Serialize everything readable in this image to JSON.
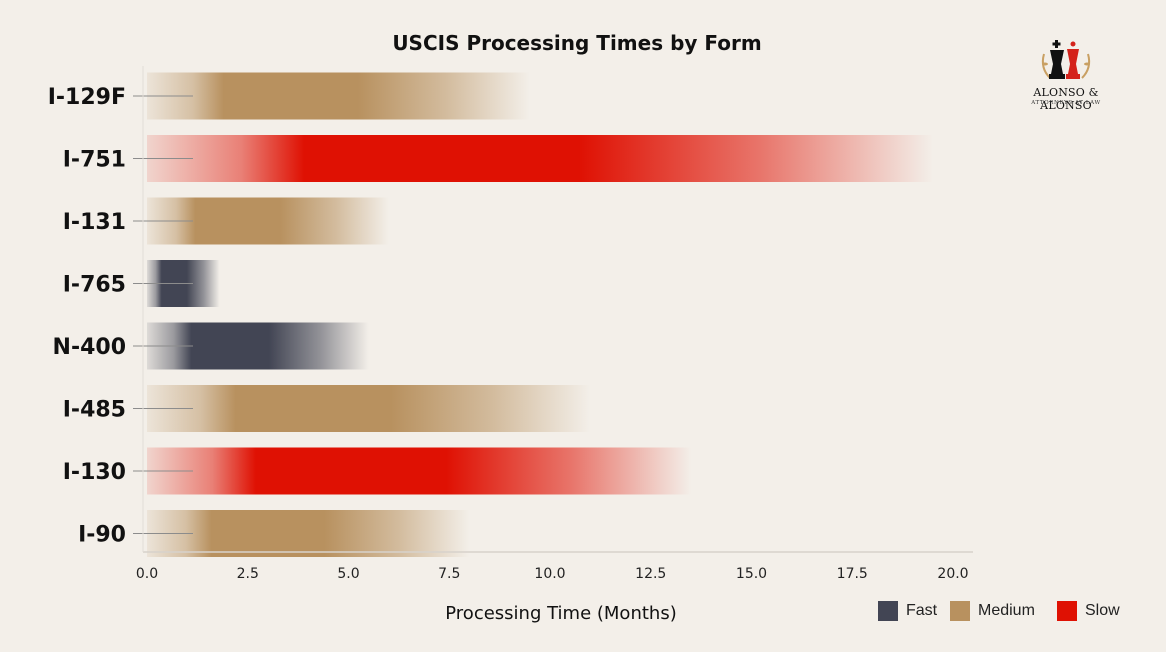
{
  "chart_data": {
    "type": "bar",
    "orientation": "horizontal",
    "title": "USCIS Processing Times by Form",
    "xlabel": "Processing Time (Months)",
    "ylabel": "",
    "xlim": [
      0,
      20
    ],
    "x_ticks": [
      "0.0",
      "2.5",
      "5.0",
      "7.5",
      "10.0",
      "12.5",
      "15.0",
      "17.5",
      "20.0"
    ],
    "grid": false,
    "legend_position": "bottom-right",
    "categories": [
      "I-129F",
      "I-751",
      "I-131",
      "I-765",
      "N-400",
      "I-485",
      "I-130",
      "I-90"
    ],
    "values": [
      9.5,
      19.5,
      6.0,
      1.8,
      5.5,
      11.0,
      13.5,
      8.0
    ],
    "speed": [
      "Medium",
      "Slow",
      "Medium",
      "Fast",
      "Fast",
      "Medium",
      "Slow",
      "Medium"
    ],
    "legend": [
      {
        "label": "Fast",
        "color": "#424554"
      },
      {
        "label": "Medium",
        "color": "#b8915f"
      },
      {
        "label": "Slow",
        "color": "#df1103"
      }
    ]
  },
  "logo": {
    "name": "ALONSO & ALONSO",
    "tagline": "ATTORNEYS AT LAW",
    "icon": "chess-king-queen-icon",
    "colors": {
      "king": "#111111",
      "queen": "#d4231b",
      "laurel": "#c9a063"
    }
  },
  "colors": {
    "background": "#f3efe9",
    "axis": "#d7d2cb",
    "text": "#111111"
  }
}
